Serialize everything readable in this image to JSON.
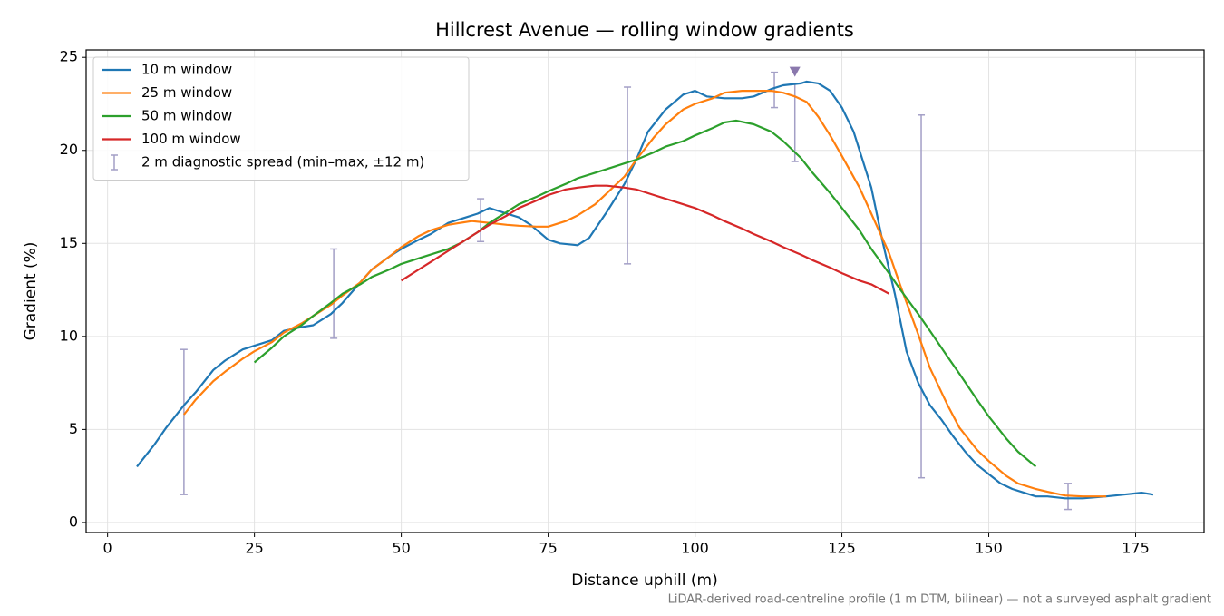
{
  "chart_data": {
    "type": "line",
    "title": "Hillcrest Avenue — rolling window gradients",
    "x_label": "Distance uphill (m)",
    "y_label": "Gradient (%)",
    "footnote": "LiDAR-derived road-centreline profile (1 m DTM, bilinear) — not a surveyed asphalt gradient",
    "xlim": [
      -3.65,
      186.65
    ],
    "ylim": [
      -0.54,
      25.4
    ],
    "xticks": [
      0,
      25,
      50,
      75,
      100,
      125,
      150,
      175
    ],
    "yticks": [
      0,
      5,
      10,
      15,
      20,
      25
    ],
    "grid": true,
    "legend": "upper left",
    "series": [
      {
        "name": "10 m window",
        "color": "#1f77b4",
        "x": [
          5,
          8,
          10,
          13,
          15,
          18,
          20,
          23,
          25,
          28,
          30,
          33,
          35,
          38,
          40,
          43,
          45,
          48,
          50,
          53,
          55,
          58,
          60,
          63,
          65,
          68,
          70,
          72,
          75,
          77,
          80,
          82,
          85,
          88,
          90,
          92,
          95,
          98,
          100,
          102,
          105,
          108,
          110,
          113,
          115,
          118,
          119,
          121,
          123,
          125,
          127,
          130,
          132,
          134,
          136,
          138,
          140,
          142,
          144,
          146,
          148,
          150,
          152,
          154,
          156,
          158,
          160,
          163,
          166,
          170,
          173,
          176,
          178
        ],
        "values": [
          3.0,
          4.2,
          5.1,
          6.3,
          7.0,
          8.2,
          8.7,
          9.3,
          9.5,
          9.8,
          10.3,
          10.5,
          10.6,
          11.2,
          11.8,
          12.9,
          13.6,
          14.3,
          14.7,
          15.2,
          15.5,
          16.1,
          16.3,
          16.6,
          16.9,
          16.6,
          16.4,
          16.0,
          15.2,
          15.0,
          14.9,
          15.3,
          16.7,
          18.2,
          19.5,
          21.0,
          22.2,
          23.0,
          23.2,
          22.9,
          22.8,
          22.8,
          22.9,
          23.3,
          23.5,
          23.6,
          23.7,
          23.6,
          23.2,
          22.3,
          21.0,
          18.0,
          15.0,
          12.3,
          9.2,
          7.5,
          6.3,
          5.5,
          4.6,
          3.8,
          3.1,
          2.6,
          2.1,
          1.8,
          1.6,
          1.4,
          1.4,
          1.3,
          1.3,
          1.4,
          1.5,
          1.6,
          1.5
        ]
      },
      {
        "name": "25 m window",
        "color": "#ff7f0e",
        "x": [
          13,
          15,
          18,
          20,
          23,
          25,
          28,
          30,
          33,
          35,
          38,
          40,
          43,
          45,
          48,
          50,
          53,
          55,
          58,
          60,
          62,
          65,
          68,
          70,
          73,
          75,
          78,
          80,
          83,
          85,
          88,
          90,
          93,
          95,
          98,
          100,
          103,
          105,
          108,
          110,
          113,
          115,
          117,
          119,
          121,
          123,
          125,
          128,
          130,
          133,
          135,
          138,
          140,
          143,
          145,
          148,
          150,
          153,
          155,
          158,
          160,
          163,
          166,
          170
        ],
        "values": [
          5.8,
          6.6,
          7.6,
          8.1,
          8.8,
          9.2,
          9.7,
          10.2,
          10.7,
          11.1,
          11.7,
          12.2,
          12.9,
          13.6,
          14.3,
          14.8,
          15.4,
          15.7,
          16.0,
          16.1,
          16.2,
          16.1,
          16.0,
          15.95,
          15.9,
          15.9,
          16.2,
          16.5,
          17.1,
          17.7,
          18.6,
          19.5,
          20.7,
          21.4,
          22.2,
          22.5,
          22.8,
          23.1,
          23.2,
          23.2,
          23.2,
          23.1,
          22.9,
          22.6,
          21.8,
          20.8,
          19.7,
          18.0,
          16.6,
          14.5,
          12.7,
          10.1,
          8.3,
          6.3,
          5.1,
          3.9,
          3.3,
          2.5,
          2.1,
          1.8,
          1.65,
          1.45,
          1.4,
          1.4
        ]
      },
      {
        "name": "50 m window",
        "color": "#2ca02c",
        "x": [
          25,
          28,
          30,
          33,
          35,
          38,
          40,
          43,
          45,
          48,
          50,
          53,
          55,
          58,
          60,
          63,
          65,
          68,
          70,
          73,
          75,
          78,
          80,
          83,
          85,
          88,
          90,
          93,
          95,
          98,
          100,
          103,
          105,
          107,
          110,
          113,
          115,
          118,
          120,
          123,
          125,
          128,
          130,
          133,
          135,
          138,
          140,
          143,
          145,
          148,
          150,
          153,
          155,
          158
        ],
        "values": [
          8.6,
          9.4,
          10.0,
          10.6,
          11.1,
          11.8,
          12.3,
          12.8,
          13.2,
          13.6,
          13.9,
          14.2,
          14.4,
          14.7,
          15.0,
          15.6,
          16.1,
          16.7,
          17.1,
          17.5,
          17.8,
          18.2,
          18.5,
          18.8,
          19.0,
          19.3,
          19.5,
          19.9,
          20.2,
          20.5,
          20.8,
          21.2,
          21.5,
          21.6,
          21.4,
          21.0,
          20.5,
          19.6,
          18.8,
          17.7,
          16.9,
          15.7,
          14.7,
          13.4,
          12.5,
          11.2,
          10.3,
          8.9,
          8.0,
          6.6,
          5.7,
          4.5,
          3.8,
          3.0
        ]
      },
      {
        "name": "100 m window",
        "color": "#d62728",
        "x": [
          50,
          53,
          55,
          58,
          60,
          63,
          65,
          68,
          70,
          73,
          75,
          78,
          80,
          83,
          85,
          88,
          90,
          93,
          95,
          98,
          100,
          103,
          105,
          108,
          110,
          113,
          115,
          118,
          120,
          123,
          125,
          128,
          130,
          133
        ],
        "values": [
          13.0,
          13.6,
          14.0,
          14.6,
          15.0,
          15.6,
          16.0,
          16.5,
          16.9,
          17.3,
          17.6,
          17.9,
          18.0,
          18.1,
          18.1,
          18.0,
          17.9,
          17.6,
          17.4,
          17.1,
          16.9,
          16.5,
          16.2,
          15.8,
          15.5,
          15.1,
          14.8,
          14.4,
          14.1,
          13.7,
          13.4,
          13.0,
          12.8,
          12.3
        ]
      }
    ],
    "errorbars": {
      "name": "2 m diagnostic spread (min–max, ±12 m)",
      "color": "#a39fc6",
      "x": [
        13,
        38.5,
        63.5,
        88.5,
        113.5,
        117,
        138.5,
        163.5
      ],
      "low": [
        1.5,
        9.9,
        15.1,
        13.9,
        22.3,
        19.4,
        2.4,
        0.7
      ],
      "high": [
        9.3,
        14.7,
        17.4,
        23.4,
        24.2,
        23.6,
        21.9,
        2.1
      ]
    },
    "marker": {
      "x": 117,
      "y": 24.2,
      "color": "#8a78ad"
    }
  }
}
